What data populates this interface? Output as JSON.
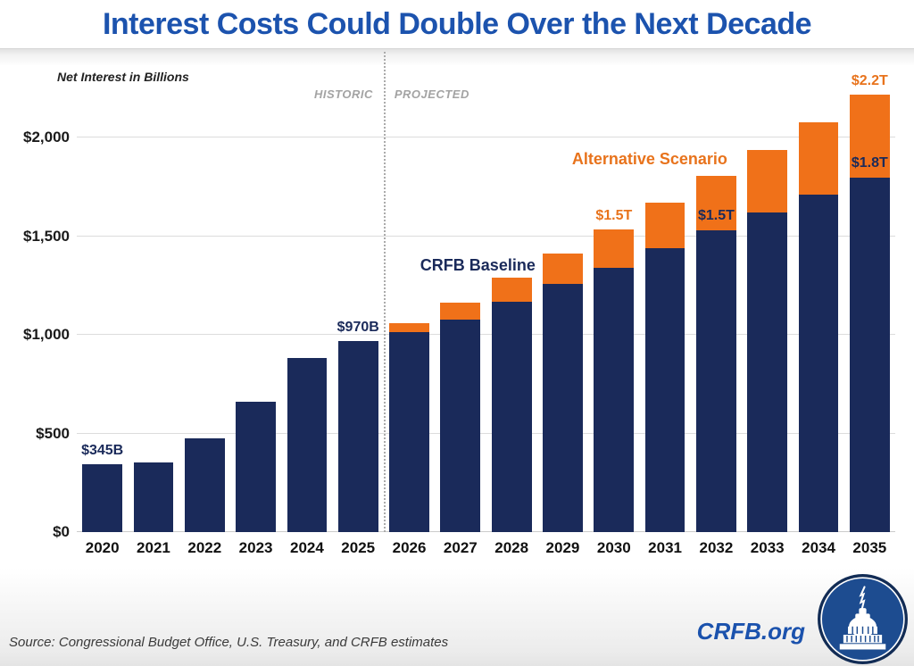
{
  "title": "Interest Costs Could Double Over the Next Decade",
  "colors": {
    "title_blue": "#1c53ae",
    "baseline_navy": "#1a2a5a",
    "alternative_orange": "#f07119",
    "orange_text": "#e8731c",
    "navy_text": "#1a2a5a",
    "period_label_gray": "#a3a3a3"
  },
  "chart_data": {
    "type": "bar",
    "stacked": true,
    "title": "Interest Costs Could Double Over the Next Decade",
    "axis_note": "Net Interest in Billions",
    "unit": "billions of dollars",
    "categories": [
      "2020",
      "2021",
      "2022",
      "2023",
      "2024",
      "2025",
      "2026",
      "2027",
      "2028",
      "2029",
      "2030",
      "2031",
      "2032",
      "2033",
      "2034",
      "2035"
    ],
    "series": [
      {
        "name": "CRFB Baseline",
        "color": "#1a2a5a",
        "values": [
          345,
          352,
          475,
          659,
          881,
          970,
          1015,
          1080,
          1170,
          1260,
          1340,
          1440,
          1530,
          1620,
          1710,
          1800
        ]
      },
      {
        "name": "Alternative Scenario",
        "color": "#f07119",
        "totals": [
          null,
          null,
          null,
          null,
          null,
          null,
          1060,
          1165,
          1290,
          1415,
          1535,
          1670,
          1805,
          1940,
          2080,
          2220
        ],
        "note": "orange segment height equals alternative total minus baseline"
      }
    ],
    "ylim": [
      0,
      2400
    ],
    "yticks": [
      {
        "value": 0,
        "label": "$0"
      },
      {
        "value": 500,
        "label": "$500"
      },
      {
        "value": 1000,
        "label": "$1,000"
      },
      {
        "value": 1500,
        "label": "$1,500"
      },
      {
        "value": 2000,
        "label": "$2,000"
      }
    ],
    "grid": true,
    "divider_after_category": "2025",
    "period_labels": {
      "left": "HISTORIC",
      "right": "PROJECTED"
    },
    "annotations": [
      {
        "category": "2020",
        "text": "$345B",
        "anchor": "total",
        "color": "#1a2a5a"
      },
      {
        "category": "2025",
        "text": "$970B",
        "anchor": "total",
        "color": "#1a2a5a"
      },
      {
        "category": "2030",
        "text": "$1.5T",
        "anchor": "total",
        "color": "#e8731c"
      },
      {
        "category": "2032",
        "text": "$1.5T",
        "anchor": "baseline",
        "color": "#1a2a5a"
      },
      {
        "category": "2035",
        "text": "$1.8T",
        "anchor": "baseline",
        "color": "#1a2a5a"
      },
      {
        "category": "2035",
        "text": "$2.2T",
        "anchor": "total",
        "color": "#e8731c"
      }
    ]
  },
  "footer": {
    "source": "Source: Congressional Budget Office, U.S. Treasury, and CRFB estimates",
    "brand": "CRFB.org"
  }
}
